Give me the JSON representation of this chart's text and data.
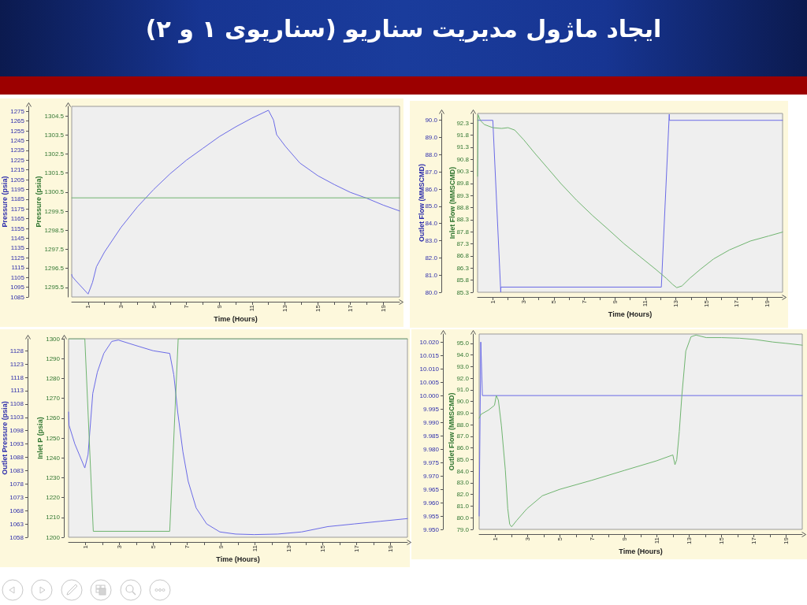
{
  "chart_data": [
    {
      "type": "line",
      "title": "ایجاد ماژول مدیریت سناریو (سناریوی ۱ و ۲)",
      "xlabel": "Time (Hours)",
      "ylabel": "Pressure (psia)",
      "y2label": "Pressure (psia)",
      "grid": false,
      "marker": "none",
      "xlim": [
        0,
        20
      ],
      "xticks": [
        1,
        {
          "value": 2,
          "label": null
        },
        3,
        {
          "value": 4,
          "label": null
        },
        5,
        {
          "value": 6,
          "label": null
        },
        7,
        {
          "value": 8,
          "label": null
        },
        9,
        {
          "value": 10,
          "label": null
        },
        11,
        {
          "value": 12,
          "label": null
        },
        13,
        {
          "value": 14,
          "label": null
        },
        15,
        {
          "value": 16,
          "label": null
        },
        17,
        {
          "value": 18,
          "label": null
        },
        19
      ],
      "ylim": [
        1085,
        1280
      ],
      "yticks": [
        1085,
        1095,
        1105,
        1115,
        1125,
        1135,
        1145,
        1155,
        1165,
        1175,
        1185,
        1195,
        1205,
        1215,
        1225,
        1235,
        1245,
        1255,
        1265,
        1275
      ],
      "y2lim": [
        1295,
        1305
      ],
      "y2ticks": [
        1295.5,
        1296.5,
        1297.5,
        1298.5,
        1299.5,
        1300.5,
        1301.5,
        1302.5,
        1303.5,
        1304.5
      ],
      "series": [
        {
          "color": "#6a6ae6",
          "x": [
            0,
            0.03,
            0.23,
            1.0,
            1.27,
            1.51,
            2,
            3,
            4,
            5,
            6,
            7,
            8,
            9,
            10,
            11,
            12,
            12.31,
            12.5,
            13.04,
            13.92,
            15.02,
            16.02,
            17,
            18,
            19,
            20
          ],
          "values": [
            1108,
            1106,
            1102,
            1088,
            1100,
            1116,
            1131,
            1156,
            1177,
            1195,
            1211,
            1225,
            1237,
            1249,
            1259,
            1268,
            1276,
            1266,
            1251,
            1239,
            1222,
            1209,
            1200,
            1192,
            1186,
            1179,
            1173
          ]
        },
        {
          "color": "#6fb46f",
          "axis": "y2",
          "x": [
            0,
            20
          ],
          "values": [
            1300.2,
            1300.2
          ]
        }
      ]
    },
    {
      "type": "line",
      "xlabel": "Time (Hours)",
      "ylabel": "Outlet Flow (MMSCMD)",
      "y2label": "Inlet Flow (MMSCMD)",
      "grid": false,
      "marker": "none",
      "xlim": [
        0,
        20
      ],
      "xticks": [
        1,
        {
          "value": 2,
          "label": null
        },
        3,
        {
          "value": 4,
          "label": null
        },
        5,
        {
          "value": 6,
          "label": null
        },
        7,
        {
          "value": 8,
          "label": null
        },
        9,
        {
          "value": 10,
          "label": null
        },
        11,
        {
          "value": 12,
          "label": null
        },
        13,
        {
          "value": 14,
          "label": null
        },
        15,
        {
          "value": 16,
          "label": null
        },
        17,
        {
          "value": 18,
          "label": null
        },
        19
      ],
      "ylim": [
        80,
        90.4
      ],
      "yticks": [
        {
          "value": 80,
          "label": "80.0"
        },
        {
          "value": 81,
          "label": "81.0"
        },
        {
          "value": 82,
          "label": "82.0"
        },
        {
          "value": 83,
          "label": "83.0"
        },
        {
          "value": 84,
          "label": "84.0"
        },
        {
          "value": 85,
          "label": "85.0"
        },
        {
          "value": 86,
          "label": "86.0"
        },
        {
          "value": 87,
          "label": "87.0"
        },
        {
          "value": 88,
          "label": "88.0"
        },
        {
          "value": 89,
          "label": "89.0"
        },
        {
          "value": 90,
          "label": "90.0"
        }
      ],
      "y2lim": [
        85.3,
        92.7
      ],
      "y2ticks": [
        85.3,
        85.8,
        86.3,
        86.8,
        87.3,
        87.8,
        88.3,
        88.8,
        89.3,
        89.8,
        90.3,
        90.8,
        91.3,
        91.8,
        92.3
      ],
      "series": [
        {
          "color": "#6a6ae6",
          "x": [
            0,
            1.0,
            1.52,
            1.53,
            12.05,
            12.57,
            12.58,
            20
          ],
          "values": [
            90.0,
            90.0,
            80.0,
            80.3,
            80.3,
            90.35,
            90.0,
            90.0
          ]
        },
        {
          "color": "#6fb46f",
          "axis": "y2",
          "x": [
            0,
            0.03,
            0.19,
            0.45,
            1.0,
            1.57,
            2.0,
            2.44,
            3.04,
            3.73,
            4.59,
            5.46,
            6.49,
            7.53,
            8.57,
            9.6,
            10.64,
            11.68,
            12.37,
            12.8,
            13.06,
            13.4,
            13.92,
            14.61,
            15.48,
            16.51,
            17.89,
            19.1,
            20
          ],
          "values": [
            90.1,
            92.65,
            92.4,
            92.24,
            92.11,
            92.08,
            92.11,
            92.01,
            91.6,
            91.07,
            90.44,
            89.8,
            89.11,
            88.48,
            87.9,
            87.31,
            86.78,
            86.25,
            85.88,
            85.62,
            85.49,
            85.56,
            85.88,
            86.25,
            86.68,
            87.05,
            87.42,
            87.63,
            87.79
          ]
        }
      ]
    },
    {
      "type": "line",
      "xlabel": "Time (Hours)",
      "ylabel": "Outlet Pressure (psia)",
      "y2label": "Inlet P (psia)",
      "grid": false,
      "marker": "none",
      "xlim": [
        0,
        20
      ],
      "xticks": [
        1,
        {
          "value": 2,
          "label": null
        },
        3,
        {
          "value": 4,
          "label": null
        },
        5,
        {
          "value": 6,
          "label": null
        },
        7,
        {
          "value": 8,
          "label": null
        },
        9,
        {
          "value": 10,
          "label": null
        },
        11,
        {
          "value": 12,
          "label": null
        },
        13,
        {
          "value": 14,
          "label": null
        },
        15,
        {
          "value": 16,
          "label": null
        },
        17,
        {
          "value": 18,
          "label": null
        },
        19
      ],
      "ylim": [
        1058,
        1132.5
      ],
      "yticks": [
        1058,
        1063,
        1068,
        1073,
        1078,
        1083,
        1088,
        1093,
        1098,
        1103,
        1108,
        1113,
        1118,
        1123,
        1128
      ],
      "y2lim": [
        1200,
        1300
      ],
      "y2ticks": [
        1200,
        1210,
        1220,
        1230,
        1240,
        1250,
        1260,
        1270,
        1280,
        1290,
        1300
      ],
      "series": [
        {
          "color": "#6a6ae6",
          "x": [
            0,
            0.03,
            0.37,
            0.96,
            1.15,
            1.43,
            1.7,
            2.08,
            2.55,
            2.94,
            3.95,
            4.99,
            5.97,
            6.21,
            6.44,
            6.75,
            7.06,
            7.53,
            8.15,
            8.93,
            9.86,
            10.95,
            12.35,
            13.75,
            15.3,
            16.86,
            18.41,
            20
          ],
          "values": [
            1105,
            1100,
            1093,
            1084,
            1089,
            1112,
            1120,
            1127,
            1131.5,
            1132,
            1130,
            1128,
            1127,
            1119,
            1105,
            1090,
            1079,
            1069,
            1063,
            1060,
            1059.2,
            1059,
            1059.2,
            1060,
            1062,
            1063,
            1064,
            1065
          ]
        },
        {
          "color": "#6fb46f",
          "axis": "y2",
          "x": [
            0,
            0.96,
            1.46,
            5.97,
            6.47,
            20
          ],
          "values": [
            1300,
            1300,
            1203,
            1203,
            1300,
            1300
          ]
        }
      ]
    },
    {
      "type": "line",
      "xlabel": "Time (Hours)",
      "y2label": "Outlet Flow (MMSCMD)",
      "grid": false,
      "marker": "none",
      "xlim": [
        0,
        20
      ],
      "xticks": [
        1,
        {
          "value": 2,
          "label": null
        },
        3,
        {
          "value": 4,
          "label": null
        },
        5,
        {
          "value": 6,
          "label": null
        },
        7,
        {
          "value": 8,
          "label": null
        },
        9,
        {
          "value": 10,
          "label": null
        },
        11,
        {
          "value": 12,
          "label": null
        },
        13,
        {
          "value": 14,
          "label": null
        },
        15,
        {
          "value": 16,
          "label": null
        },
        17,
        {
          "value": 18,
          "label": null
        },
        19
      ],
      "ylim": [
        9.95,
        10.023
      ],
      "yticks": [
        {
          "value": 9.95,
          "label": "9.950"
        },
        {
          "value": 9.955,
          "label": "9.955"
        },
        {
          "value": 9.96,
          "label": "9.960"
        },
        {
          "value": 9.965,
          "label": "9.965"
        },
        {
          "value": 9.97,
          "label": "9.970"
        },
        {
          "value": 9.975,
          "label": "9.975"
        },
        {
          "value": 9.98,
          "label": "9.980"
        },
        {
          "value": 9.985,
          "label": "9.985"
        },
        {
          "value": 9.99,
          "label": "9.990"
        },
        {
          "value": 9.995,
          "label": "9.995"
        },
        {
          "value": 10,
          "label": "10.000"
        },
        {
          "value": 10.005,
          "label": "10.005"
        },
        {
          "value": 10.01,
          "label": "10.010"
        },
        {
          "value": 10.015,
          "label": "10.015"
        },
        {
          "value": 10.02,
          "label": "10.020"
        }
      ],
      "y2lim": [
        79,
        95.8
      ],
      "y2ticks": [
        {
          "value": 79,
          "label": "79.0"
        },
        {
          "value": 80,
          "label": "80.0"
        },
        {
          "value": 81,
          "label": "81.0"
        },
        {
          "value": 82,
          "label": "82.0"
        },
        {
          "value": 83,
          "label": "83.0"
        },
        {
          "value": 84,
          "label": "84.0"
        },
        {
          "value": 85,
          "label": "85.0"
        },
        {
          "value": 86,
          "label": "86.0"
        },
        {
          "value": 87,
          "label": "87.0"
        },
        {
          "value": 88,
          "label": "88.0"
        },
        {
          "value": 89,
          "label": "89.0"
        },
        {
          "value": 90,
          "label": "90.0"
        },
        {
          "value": 91,
          "label": "91.0"
        },
        {
          "value": 92,
          "label": "92.0"
        },
        {
          "value": 93,
          "label": "93.0"
        },
        {
          "value": 94,
          "label": "94.0"
        },
        {
          "value": 95,
          "label": "95.0"
        }
      ],
      "series": [
        {
          "color": "#6a6ae6",
          "x": [
            0,
            0.1,
            0.2,
            20
          ],
          "values": [
            9.955,
            10.02,
            10.0,
            10.0
          ]
        },
        {
          "color": "#6fb46f",
          "axis": "y2",
          "x": [
            0,
            0.11,
            0.59,
            0.95,
            1.06,
            1.19,
            1.38,
            1.62,
            1.77,
            1.89,
            2.01,
            2.33,
            2.96,
            3.91,
            4.98,
            6.97,
            8.99,
            10.97,
            11.99,
            12.12,
            12.23,
            12.39,
            12.55,
            12.79,
            13.11,
            13.42,
            14.06,
            15.01,
            16.12,
            17.07,
            18.18,
            18.97,
            20
          ],
          "values": [
            88.56,
            88.89,
            89.27,
            89.67,
            90.51,
            90.11,
            87.89,
            84.11,
            80.78,
            79.44,
            79.22,
            79.78,
            80.78,
            81.89,
            82.44,
            83.22,
            84.07,
            84.89,
            85.4,
            84.56,
            85.0,
            87.44,
            90.56,
            94.33,
            95.56,
            95.71,
            95.49,
            95.49,
            95.44,
            95.33,
            95.11,
            95.0,
            94.84
          ]
        }
      ]
    }
  ]
}
